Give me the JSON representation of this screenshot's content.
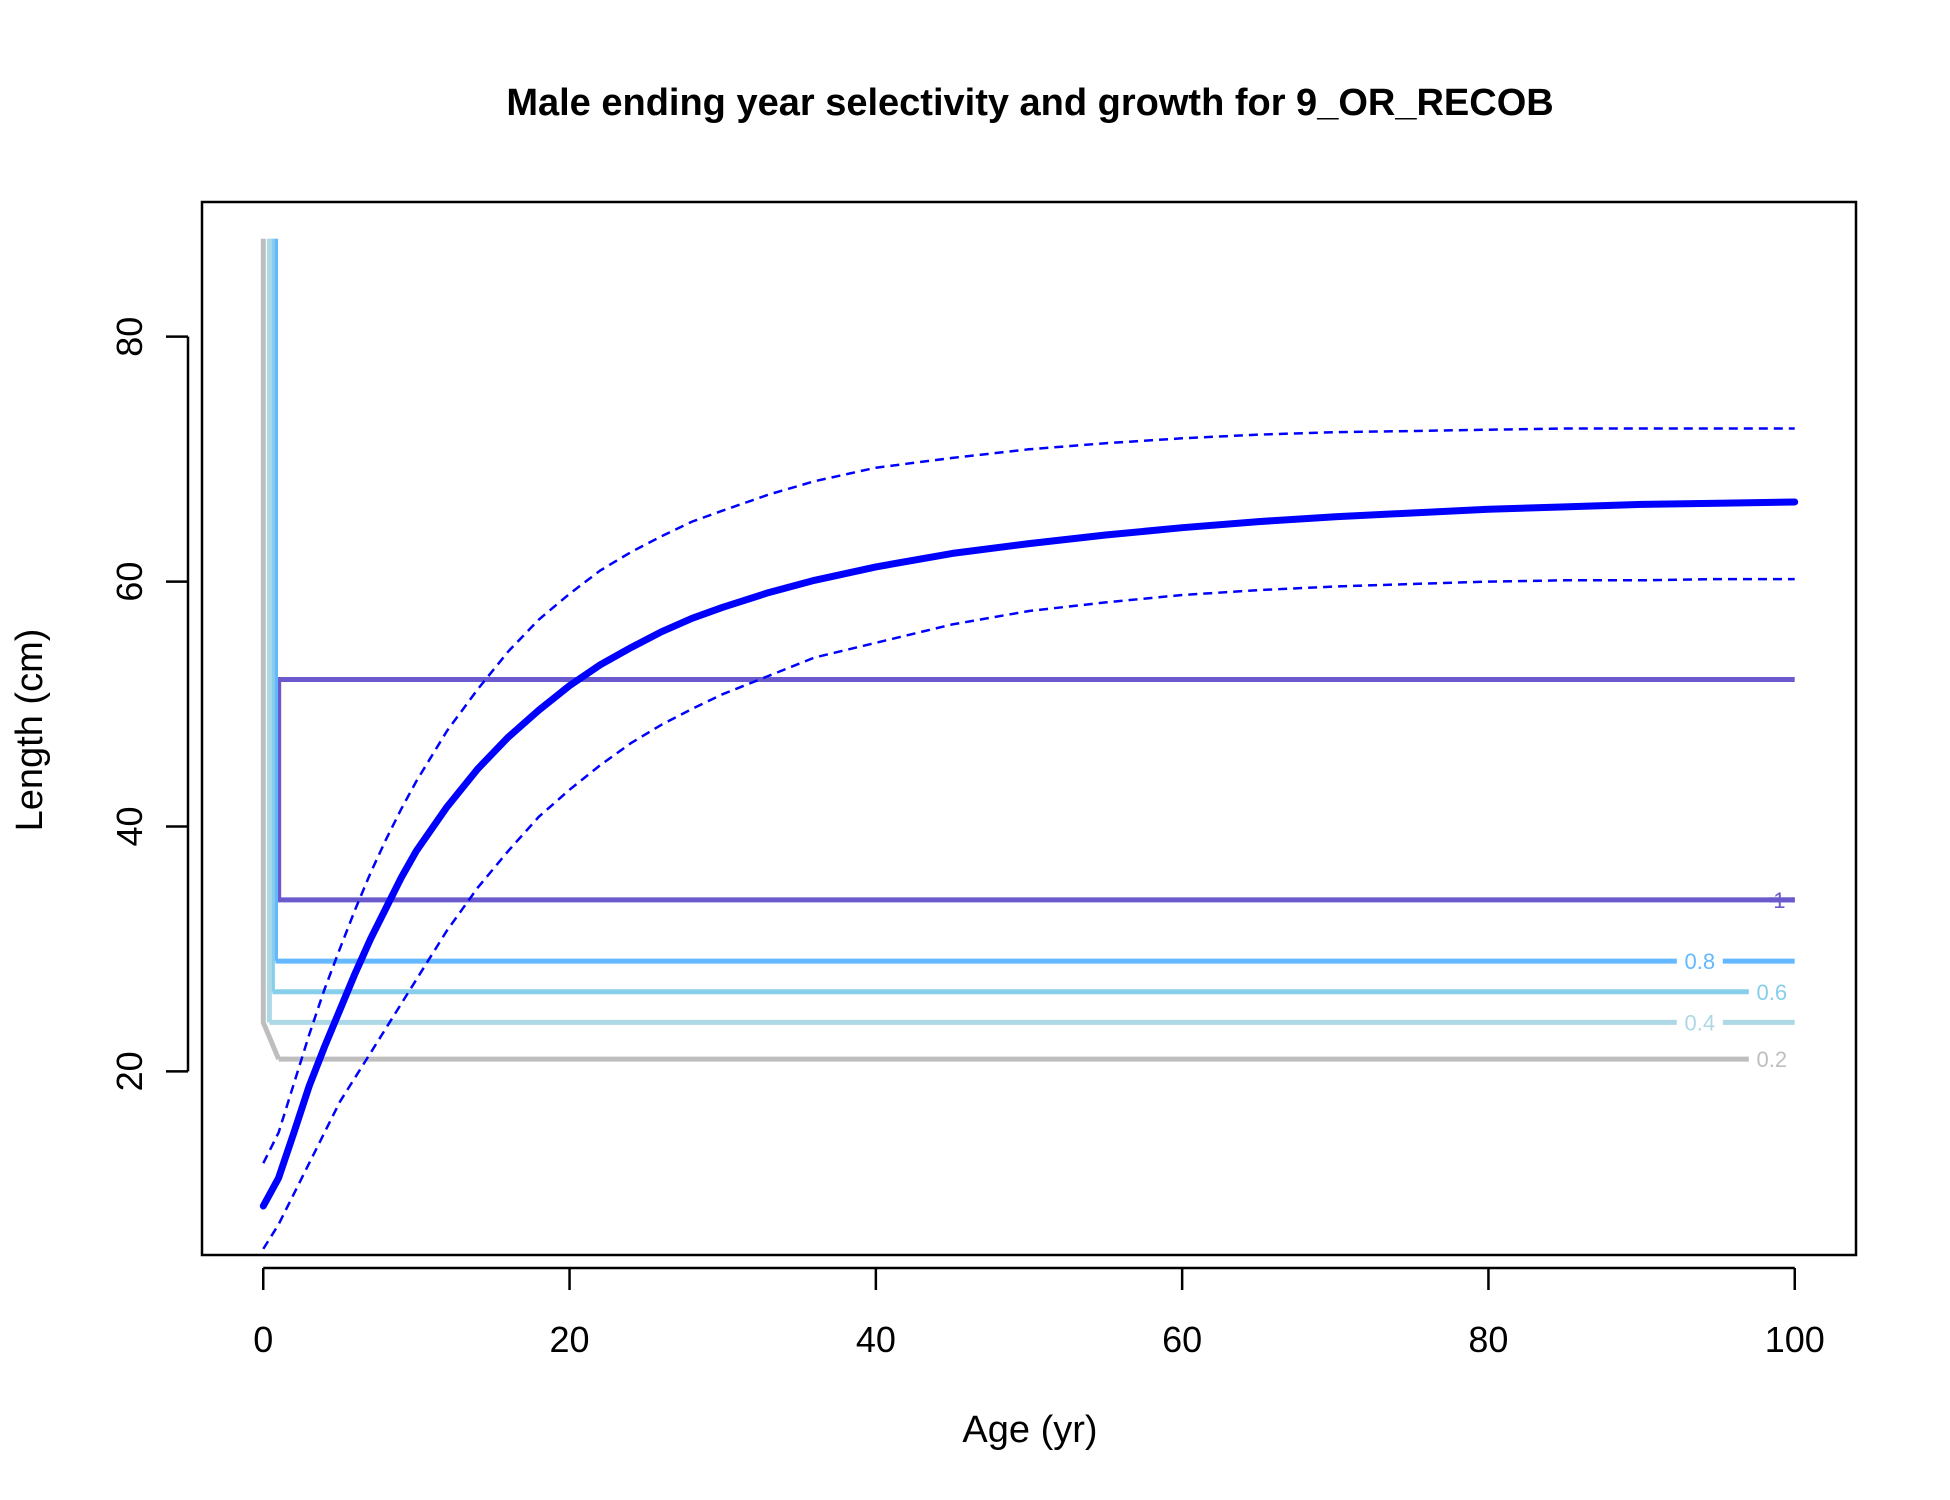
{
  "chart_data": {
    "type": "line",
    "title": "Male ending year selectivity and growth for 9_OR_RECOB",
    "xlabel": "Age (yr)",
    "ylabel": "Length (cm)",
    "xlim": [
      -4,
      104
    ],
    "ylim": [
      5,
      91
    ],
    "xticks": [
      0,
      20,
      40,
      60,
      80,
      100
    ],
    "yticks": [
      20,
      40,
      60,
      80
    ],
    "grid": false,
    "growth": {
      "color": "#0000FF",
      "x": [
        0,
        1,
        2,
        3,
        4,
        5,
        6,
        7,
        8,
        9,
        10,
        12,
        14,
        16,
        18,
        20,
        22,
        24,
        26,
        28,
        30,
        33,
        36,
        40,
        45,
        50,
        55,
        60,
        65,
        70,
        75,
        80,
        85,
        90,
        95,
        100
      ],
      "mean": [
        9.0,
        11.3,
        15.0,
        18.8,
        22.0,
        25.0,
        28.0,
        30.8,
        33.3,
        35.8,
        38.0,
        41.6,
        44.7,
        47.3,
        49.5,
        51.5,
        53.2,
        54.6,
        55.9,
        57.0,
        57.9,
        59.1,
        60.1,
        61.2,
        62.3,
        63.1,
        63.8,
        64.4,
        64.9,
        65.3,
        65.6,
        65.9,
        66.1,
        66.3,
        66.4,
        66.5
      ],
      "upper": [
        12.5,
        15.0,
        19.0,
        23.0,
        26.7,
        30.0,
        33.2,
        36.2,
        38.9,
        41.4,
        43.7,
        47.8,
        51.2,
        54.3,
        56.9,
        59.0,
        60.9,
        62.4,
        63.7,
        64.9,
        65.8,
        67.1,
        68.2,
        69.3,
        70.1,
        70.8,
        71.3,
        71.7,
        72.0,
        72.2,
        72.3,
        72.4,
        72.5,
        72.5,
        72.5,
        72.5
      ],
      "lower": [
        5.5,
        7.5,
        10.0,
        12.5,
        15.0,
        17.5,
        19.5,
        21.5,
        23.5,
        25.5,
        27.5,
        31.5,
        35.0,
        38.0,
        40.8,
        43.0,
        45.0,
        46.8,
        48.3,
        49.6,
        50.8,
        52.3,
        53.8,
        55.0,
        56.5,
        57.6,
        58.3,
        58.9,
        59.3,
        59.6,
        59.8,
        60.0,
        60.1,
        60.1,
        60.2,
        60.2
      ]
    },
    "contours": [
      {
        "level": "1",
        "color": "#6A5ACD",
        "x": [
          1.0,
          1.0,
          100,
          100
        ],
        "y": [
          52.0,
          34.0,
          34.0,
          34.0
        ],
        "top_y": 52.0,
        "y_label": 34.0,
        "gap": [
          98.3,
          99.8
        ],
        "label_x": 99.0,
        "label_y": 34.0
      },
      {
        "level": "0.8",
        "color": "#63B8FF",
        "x": [
          0.8,
          0.8,
          100
        ],
        "y": [
          88.0,
          29.0,
          29.0
        ],
        "gap": [
          92.3,
          95.3
        ],
        "label_x": 93.8,
        "label_y": 29.0
      },
      {
        "level": "0.6",
        "color": "#87CEEB",
        "x": [
          0.6,
          0.6,
          100
        ],
        "y": [
          88.0,
          26.5,
          26.5
        ],
        "gap": [
          97.0,
          100
        ],
        "label_x": 98.5,
        "label_y": 26.5
      },
      {
        "level": "0.4",
        "color": "#ADD8E6",
        "x": [
          0.4,
          0.4,
          100
        ],
        "y": [
          88.0,
          24.0,
          24.0
        ],
        "gap": [
          92.3,
          95.3
        ],
        "label_x": 93.8,
        "label_y": 24.0
      },
      {
        "level": "0.2",
        "color": "#BEBEBE",
        "x": [
          0.0,
          0.0,
          1.0,
          97
        ],
        "y": [
          88.0,
          24.0,
          21.0,
          21.0
        ],
        "gap": [
          97,
          100
        ],
        "label_x": 98.5,
        "label_y": 21.0
      }
    ]
  }
}
